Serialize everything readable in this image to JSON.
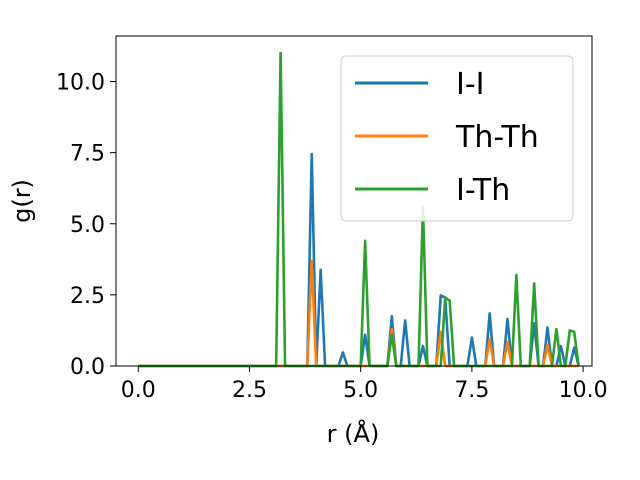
{
  "chart_data": {
    "type": "line",
    "title": "",
    "xlabel": "r (Å)",
    "ylabel": "g(r)",
    "xlim": [
      -0.5,
      10.2
    ],
    "ylim": [
      0,
      11.6
    ],
    "xticks": [
      0.0,
      2.5,
      5.0,
      7.5,
      10.0
    ],
    "xtick_labels": [
      "0.0",
      "2.5",
      "5.0",
      "7.5",
      "10.0"
    ],
    "yticks": [
      0.0,
      2.5,
      5.0,
      7.5,
      10.0
    ],
    "ytick_labels": [
      "0.0",
      "2.5",
      "5.0",
      "7.5",
      "10.0"
    ],
    "grid": false,
    "legend_position": "top-right",
    "series": [
      {
        "name": "I-I",
        "color": "#1f77b4",
        "points": [
          [
            0,
            0
          ],
          [
            3.7,
            0
          ],
          [
            3.8,
            0
          ],
          [
            3.9,
            7.45
          ],
          [
            4.0,
            0
          ],
          [
            4.1,
            3.38
          ],
          [
            4.2,
            0
          ],
          [
            4.5,
            0
          ],
          [
            4.6,
            0.48
          ],
          [
            4.7,
            0
          ],
          [
            5.0,
            0
          ],
          [
            5.1,
            1.1
          ],
          [
            5.2,
            0
          ],
          [
            5.6,
            0
          ],
          [
            5.7,
            1.75
          ],
          [
            5.8,
            0
          ],
          [
            5.9,
            0
          ],
          [
            6.0,
            1.6
          ],
          [
            6.1,
            0
          ],
          [
            6.3,
            0
          ],
          [
            6.4,
            0.7
          ],
          [
            6.5,
            0
          ],
          [
            6.7,
            0
          ],
          [
            6.8,
            2.48
          ],
          [
            6.9,
            2.4
          ],
          [
            7.0,
            0
          ],
          [
            7.4,
            0
          ],
          [
            7.5,
            1.0
          ],
          [
            7.6,
            0
          ],
          [
            7.8,
            0
          ],
          [
            7.9,
            1.85
          ],
          [
            8.0,
            0
          ],
          [
            8.2,
            0
          ],
          [
            8.3,
            1.65
          ],
          [
            8.4,
            0
          ],
          [
            8.8,
            0
          ],
          [
            8.9,
            1.5
          ],
          [
            9.0,
            0
          ],
          [
            9.1,
            0
          ],
          [
            9.2,
            1.35
          ],
          [
            9.3,
            0
          ],
          [
            9.4,
            0
          ],
          [
            9.5,
            0.7
          ],
          [
            9.6,
            0
          ],
          [
            9.7,
            0
          ],
          [
            9.8,
            0.65
          ],
          [
            9.9,
            0
          ]
        ]
      },
      {
        "name": "Th-Th",
        "color": "#ff7f0e",
        "points": [
          [
            0,
            0
          ],
          [
            3.8,
            0
          ],
          [
            3.9,
            3.7
          ],
          [
            4.0,
            0
          ],
          [
            5.6,
            0
          ],
          [
            5.7,
            1.3
          ],
          [
            5.8,
            0
          ],
          [
            6.7,
            0
          ],
          [
            6.8,
            1.2
          ],
          [
            6.9,
            0
          ],
          [
            7.8,
            0
          ],
          [
            7.9,
            0.95
          ],
          [
            8.0,
            0
          ],
          [
            8.2,
            0
          ],
          [
            8.3,
            0.85
          ],
          [
            8.4,
            0
          ],
          [
            9.1,
            0
          ],
          [
            9.2,
            0.75
          ],
          [
            9.3,
            0
          ],
          [
            9.9,
            0
          ]
        ]
      },
      {
        "name": "I-Th",
        "color": "#2ca02c",
        "points": [
          [
            0,
            0
          ],
          [
            3.1,
            0
          ],
          [
            3.2,
            11.0
          ],
          [
            3.3,
            0
          ],
          [
            5.0,
            0
          ],
          [
            5.1,
            4.4
          ],
          [
            5.2,
            0
          ],
          [
            5.6,
            0
          ],
          [
            5.7,
            1.1
          ],
          [
            5.8,
            0
          ],
          [
            6.3,
            0
          ],
          [
            6.4,
            5.6
          ],
          [
            6.5,
            0
          ],
          [
            6.8,
            0
          ],
          [
            6.9,
            2.4
          ],
          [
            7.0,
            2.3
          ],
          [
            7.1,
            0
          ],
          [
            8.4,
            0
          ],
          [
            8.5,
            3.2
          ],
          [
            8.6,
            0
          ],
          [
            8.8,
            0
          ],
          [
            8.9,
            2.9
          ],
          [
            9.0,
            0
          ],
          [
            9.3,
            0
          ],
          [
            9.4,
            1.3
          ],
          [
            9.5,
            0
          ],
          [
            9.6,
            0
          ],
          [
            9.7,
            1.25
          ],
          [
            9.8,
            1.2
          ],
          [
            9.9,
            0
          ]
        ]
      }
    ]
  }
}
